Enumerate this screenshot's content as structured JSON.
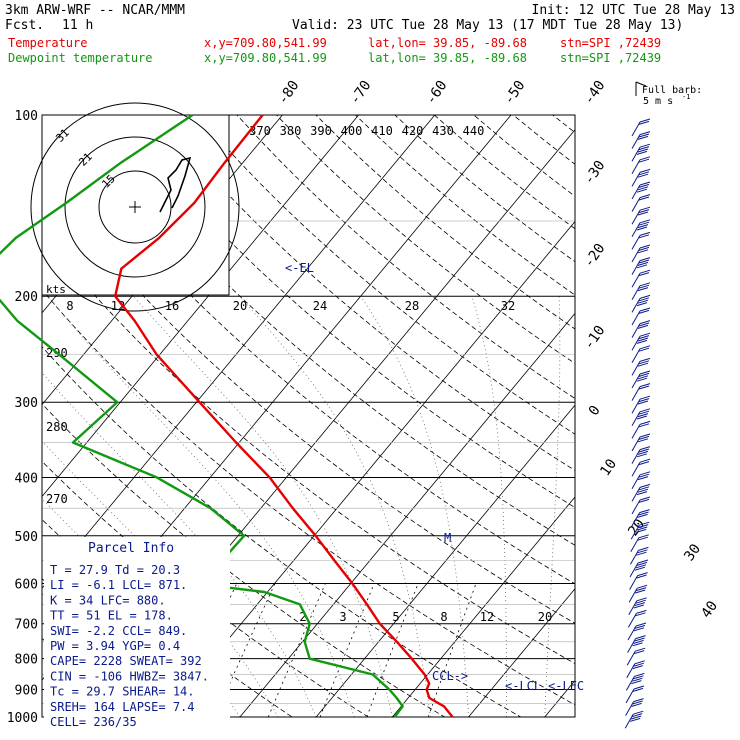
{
  "header": {
    "model": "3km ARW-WRF -- NCAR/MMM",
    "init": "Init: 12 UTC Tue 28 May 13",
    "fcst_label": "Fcst.",
    "fcst_value": "11 h",
    "valid": "Valid: 23 UTC Tue 28 May 13 (17 MDT Tue 28 May 13)",
    "legend": [
      {
        "name": "Temperature",
        "color": "#e60000",
        "xy": "x,y=709.80,541.99",
        "latlon": "lat,lon= 39.85, -89.68",
        "stn": "stn=SPI ,72439"
      },
      {
        "name": "Dewpoint temperature",
        "color": "#119911",
        "xy": "x,y=709.80,541.99",
        "latlon": "lat,lon= 39.85, -89.68",
        "stn": "stn=SPI ,72439"
      }
    ]
  },
  "barb_key": {
    "line1": "Full barb:",
    "line2": "5 m s",
    "exp": "-1"
  },
  "hodograph": {
    "kts_label": "kts",
    "ring_labels": [
      "31",
      "21",
      "15"
    ],
    "hodo_color": "#000000"
  },
  "theta_e_labels": [
    "370",
    "380",
    "390",
    "400",
    "410",
    "420",
    "430",
    "440"
  ],
  "pw_labels": [
    "8",
    "12",
    "16",
    "20",
    "24",
    "28",
    "32"
  ],
  "mixing_ratio_labels": [
    "2",
    "3",
    "5",
    "8",
    "12",
    "20"
  ],
  "dry_adiabat_labels": [
    "290",
    "280",
    "270"
  ],
  "skew_isotherm_labels": [
    "-80",
    "-70",
    "-60",
    "-50",
    "-40",
    "-30",
    "-20",
    "-10",
    "0",
    "10",
    "20",
    "30",
    "40"
  ],
  "pressure_labels": [
    "100",
    "200",
    "300",
    "400",
    "500",
    "600",
    "700",
    "800",
    "900",
    "1000"
  ],
  "annotations": {
    "el": "<-EL",
    "lcl": "<-LCL",
    "lfc": "<-LFC",
    "ccl": "CCL->",
    "m": "M"
  },
  "parcel_info": {
    "title": "Parcel Info",
    "rows": [
      "T  =   27.9  Td =  20.3",
      "LI =   -6.1  LCL=  871.",
      "K  =     34  LFC=  880.",
      "TT =     51  EL =  178.",
      "SWI=   -2.2  CCL=  849.",
      "PW =   3.94  YGP=   0.4",
      "CAPE=  2228  SWEAT=  392",
      "CIN =  -106  HWBZ= 3847.",
      "Tc =   29.7  SHEAR=  14.",
      "SREH=   164  LAPSE=  7.4",
      "CELL= 236/35"
    ]
  },
  "chart_data": {
    "type": "line",
    "title": "",
    "xlabel": "",
    "ylabel": "",
    "y_axis": "pressure (hPa), log scale",
    "ylim": [
      1000,
      100
    ],
    "x_axis": "temperature (deg C), skewed",
    "series": [
      {
        "name": "Temperature",
        "color": "#e60000",
        "p": [
          1000,
          960,
          930,
          900,
          880,
          850,
          800,
          750,
          700,
          650,
          600,
          550,
          500,
          450,
          400,
          350,
          300,
          250,
          220,
          200,
          180,
          160,
          140,
          120,
          100
        ],
        "t": [
          27.9,
          25.6,
          22.8,
          21.5,
          21.2,
          19.6,
          16.2,
          12.4,
          8.2,
          4.4,
          0.2,
          -4.6,
          -9.8,
          -15.8,
          -22.2,
          -30.4,
          -39.6,
          -50.4,
          -56.9,
          -62.2,
          -64.4,
          -62.8,
          -62.0,
          -62.4,
          -62.6
        ]
      },
      {
        "name": "Dewpoint temperature",
        "color": "#119911",
        "p": [
          1000,
          960,
          930,
          900,
          850,
          800,
          750,
          700,
          650,
          620,
          600,
          550,
          500,
          450,
          400,
          350,
          300,
          250,
          220,
          200,
          180,
          160,
          140,
          120,
          100
        ],
        "t": [
          20.3,
          20.2,
          18.5,
          16.6,
          12.8,
          2.8,
          0.3,
          -1.0,
          -4.4,
          -10.4,
          -20.6,
          -19.4,
          -19.2,
          -26.6,
          -37.0,
          -51.8,
          -50.4,
          -63.2,
          -72.3,
          -77.8,
          -82.4,
          -81.6,
          -78.8,
          -76.0,
          -71.8
        ]
      }
    ],
    "wind_barbs_right_edge": true,
    "grid": true
  }
}
